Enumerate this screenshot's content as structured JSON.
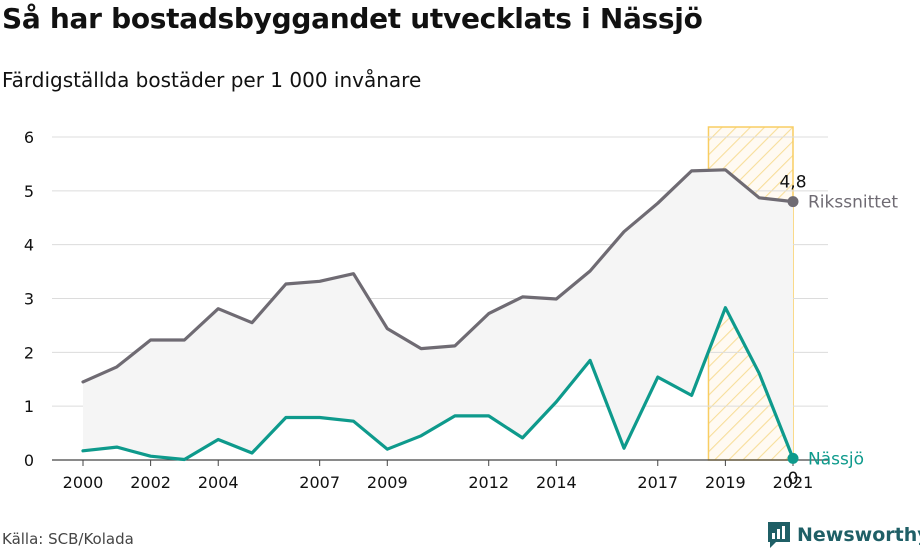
{
  "title": "Så har bostadsbyggandet utvecklats i Nässjö",
  "subtitle": "Färdigställda bostäder per 1 000 invånare",
  "source": "Källa: SCB/Kolada",
  "brand": "Newsworthy",
  "colors": {
    "national": "#6f6b73",
    "local": "#0e9a8c",
    "highlight": "#f7c548",
    "area": "#f5f5f5",
    "grid": "#dcdcdc"
  },
  "chart_data": {
    "type": "line",
    "ylim": [
      0,
      6
    ],
    "yticks": [
      "0",
      "1",
      "2",
      "3",
      "4",
      "5",
      "6"
    ],
    "xticks": [
      "2000",
      "2002",
      "2004",
      "2007",
      "2009",
      "2012",
      "2014",
      "2017",
      "2019",
      "2021"
    ],
    "x": [
      2000,
      2001,
      2002,
      2003,
      2004,
      2005,
      2006,
      2007,
      2008,
      2009,
      2010,
      2011,
      2012,
      2013,
      2014,
      2015,
      2016,
      2017,
      2018,
      2019,
      2020,
      2021
    ],
    "highlight_range": [
      2018.5,
      2021
    ],
    "series": [
      {
        "name": "Rikssnittet",
        "end_label": "4,8",
        "values": [
          1.45,
          1.73,
          2.23,
          2.23,
          2.81,
          2.55,
          3.27,
          3.32,
          3.46,
          2.44,
          2.07,
          2.12,
          2.72,
          3.03,
          2.99,
          3.51,
          4.24,
          4.77,
          5.37,
          5.39,
          4.87,
          4.8
        ]
      },
      {
        "name": "Nässjö",
        "end_label": "0",
        "values": [
          0.17,
          0.24,
          0.07,
          0.01,
          0.38,
          0.13,
          0.79,
          0.79,
          0.72,
          0.2,
          0.45,
          0.82,
          0.82,
          0.41,
          1.08,
          1.85,
          0.22,
          1.54,
          1.2,
          2.83,
          1.61,
          0.03
        ]
      }
    ]
  }
}
